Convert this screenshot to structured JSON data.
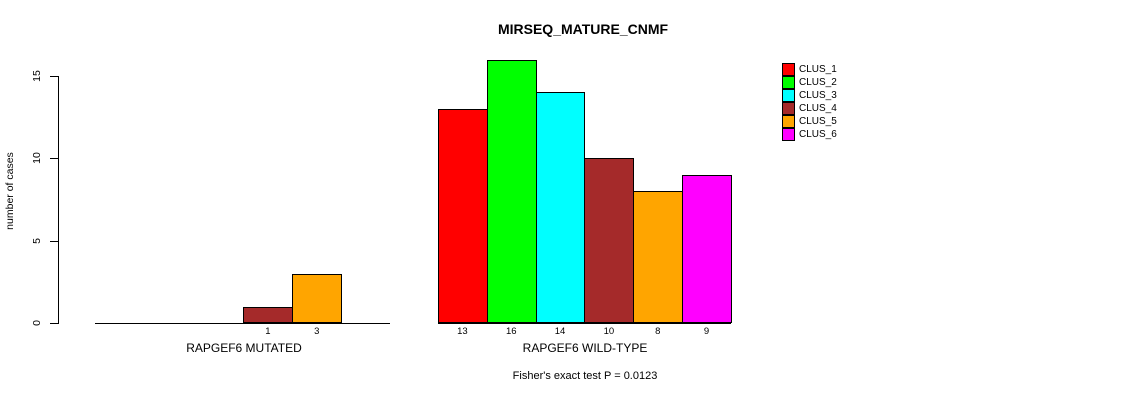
{
  "chart_data": {
    "type": "bar",
    "title": "MIRSEQ_MATURE_CNMF",
    "ylabel": "number of cases",
    "xlabel": "",
    "ylim": [
      0,
      16.6
    ],
    "yticks": [
      0,
      5,
      10,
      15
    ],
    "grid": false,
    "legend_position": "top-right",
    "clusters": [
      "CLUS_1",
      "CLUS_2",
      "CLUS_3",
      "CLUS_4",
      "CLUS_5",
      "CLUS_6"
    ],
    "cluster_colors": [
      "#ff0000",
      "#00ff00",
      "#00ffff",
      "#a52a2a",
      "#ffa500",
      "#ff00ff"
    ],
    "groups": [
      {
        "label": "RAPGEF6 MUTATED",
        "values": [
          0,
          0,
          0,
          1,
          3,
          0
        ],
        "bar_labels": [
          "",
          "",
          "",
          "1",
          "3",
          ""
        ]
      },
      {
        "label": "RAPGEF6 WILD-TYPE",
        "values": [
          13,
          16,
          14,
          10,
          8,
          9
        ],
        "bar_labels": [
          "13",
          "16",
          "14",
          "10",
          "8",
          "9"
        ]
      }
    ],
    "annotation": "Fisher's exact test P = 0.0123"
  }
}
